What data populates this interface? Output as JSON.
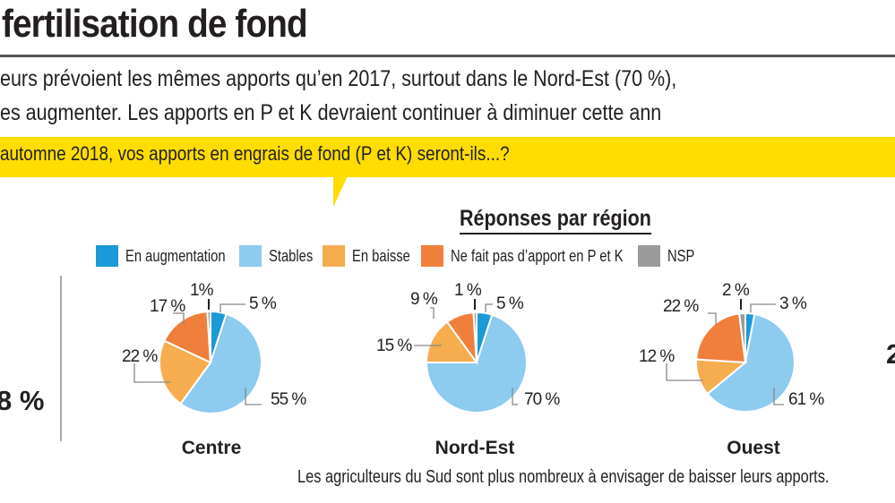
{
  "header": {
    "title": "fertilisation de fond",
    "lead_line1": "eurs prévoient les mêmes apports qu’en 2017, surtout dans le Nord-Est (70 %),",
    "lead_line2": "es augmenter. Les apports en P et K devraient continuer à diminuer cette ann",
    "question": "automne 2018, vos apports en engrais de fond (P et K) seront-ils...?"
  },
  "side_values": {
    "left": "8 %",
    "right": "2"
  },
  "caption": "Les agriculteurs du Sud sont plus nombreux à envisager de baisser leurs apports.",
  "chart_data": {
    "type": "pie",
    "title": "Réponses par région",
    "legend": [
      {
        "name": "En augmentation",
        "color": "#1a9ad6"
      },
      {
        "name": "Stables",
        "color": "#8dcbef"
      },
      {
        "name": "En baisse",
        "color": "#f5ad4f"
      },
      {
        "name": "Ne fait pas d’apport en P et K",
        "color": "#f07f3c"
      },
      {
        "name": "NSP",
        "color": "#9b9b9b"
      }
    ],
    "legend_placement": "top",
    "pies": [
      {
        "region": "Centre",
        "values": [
          5,
          55,
          22,
          17,
          1
        ],
        "labels": [
          "5 %",
          "55 %",
          "22 %",
          "17 %",
          "1%"
        ]
      },
      {
        "region": "Nord-Est",
        "values": [
          5,
          70,
          15,
          9,
          1
        ],
        "labels": [
          "5 %",
          "70 %",
          "15 %",
          "9 %",
          "1 %"
        ]
      },
      {
        "region": "Ouest",
        "values": [
          3,
          61,
          12,
          22,
          2
        ],
        "labels": [
          "3 %",
          "61 %",
          "12 %",
          "22 %",
          "2 %"
        ]
      }
    ]
  }
}
